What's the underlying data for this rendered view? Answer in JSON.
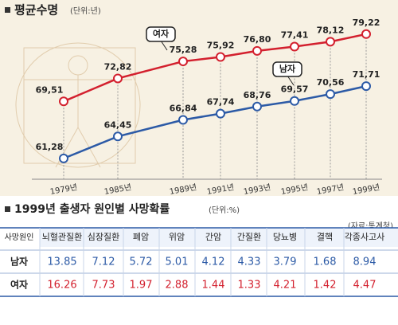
{
  "chart_data": {
    "type": "line",
    "title": "평균수명",
    "subtitle": "(단위:년)",
    "categories": [
      "1979년",
      "1985년",
      "1989년",
      "1991년",
      "1993년",
      "1995년",
      "1997년",
      "1999년"
    ],
    "series": [
      {
        "name": "여자",
        "color": "#d3202e",
        "values": [
          69.51,
          72.82,
          75.28,
          75.92,
          76.8,
          77.41,
          78.12,
          79.22
        ],
        "value_labels": [
          "69,51",
          "72,82",
          "75,28",
          "75,92",
          "76,80",
          "77,41",
          "78,12",
          "79,22"
        ]
      },
      {
        "name": "남자",
        "color": "#2c5aa6",
        "values": [
          61.28,
          64.45,
          66.84,
          67.74,
          68.76,
          69.57,
          70.56,
          71.71
        ],
        "value_labels": [
          "61,28",
          "64,45",
          "66,84",
          "67,74",
          "68,76",
          "69,57",
          "70,56",
          "71,71"
        ]
      }
    ]
  },
  "table": {
    "title": "1999년 출생자 원인별 사망확률",
    "unit": "(단위:%)",
    "source": "(자료:통계청)",
    "header": [
      "사망원인",
      "뇌혈관질환",
      "심장질환",
      "폐암",
      "위암",
      "간암",
      "간질환",
      "당뇨병",
      "결핵",
      "각종사고사"
    ],
    "rows": [
      [
        "남자",
        13.85,
        7.12,
        5.72,
        5.01,
        4.12,
        4.33,
        3.79,
        1.68,
        8.94
      ],
      [
        "여자",
        16.26,
        7.73,
        1.97,
        2.88,
        1.44,
        1.33,
        4.21,
        1.42,
        4.47
      ]
    ]
  }
}
